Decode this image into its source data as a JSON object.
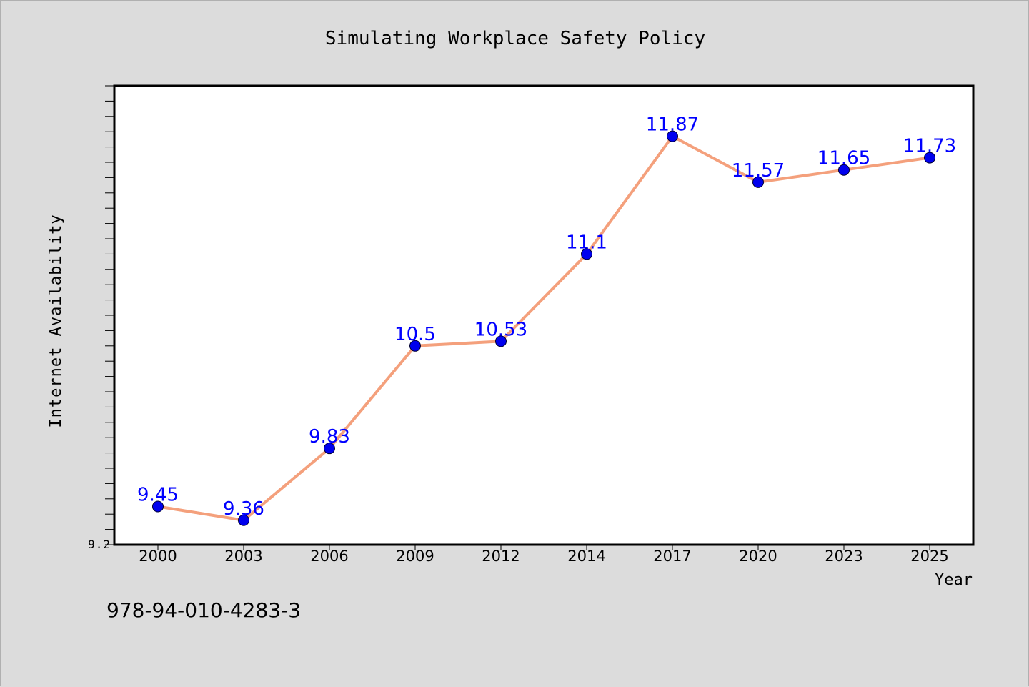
{
  "chart_data": {
    "type": "line",
    "title": "Simulating Workplace Safety Policy",
    "xlabel": "Year",
    "ylabel": "Internet Availability",
    "categories": [
      "2000",
      "2003",
      "2006",
      "2009",
      "2012",
      "2014",
      "2017",
      "2020",
      "2023",
      "2025"
    ],
    "values": [
      9.45,
      9.36,
      9.83,
      10.5,
      10.53,
      11.1,
      11.87,
      11.57,
      11.65,
      11.73
    ],
    "data_labels": [
      "9.45",
      "9.36",
      "9.83",
      "10.5",
      "10.53",
      "11.1",
      "11.87",
      "11.57",
      "11.65",
      "11.73"
    ],
    "ylim": [
      9.2,
      12.2
    ],
    "y_tick_labels": [
      "9.2"
    ],
    "grid": false,
    "colors": {
      "line": "#f4a07c",
      "marker": "#0000ee",
      "label": "#0000ff"
    }
  },
  "footer_text": "978-94-010-4283-3"
}
